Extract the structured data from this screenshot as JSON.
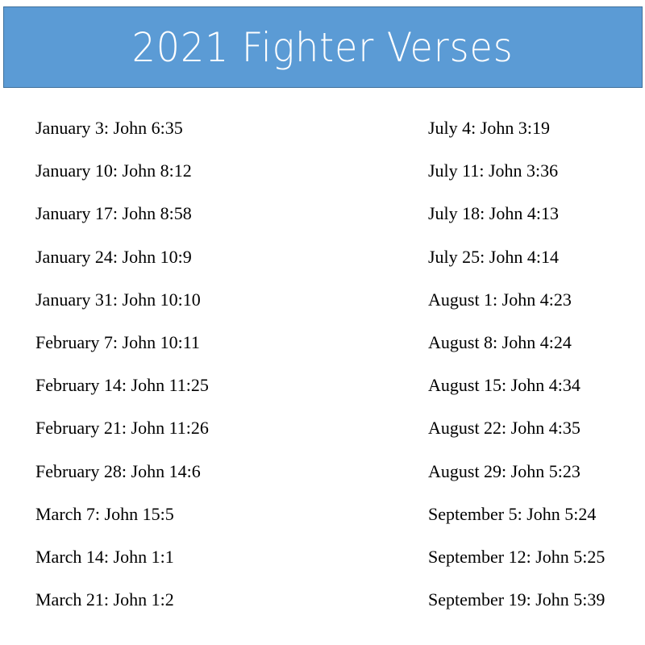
{
  "header": {
    "title": "2021 Fighter Verses",
    "background_color": "#5b9bd5"
  },
  "columns": [
    [
      "January 3: John 6:35",
      "January 10: John 8:12",
      "January 17: John 8:58",
      "January 24: John 10:9",
      "January 31: John 10:10",
      "February 7: John 10:11",
      "February 14: John 11:25",
      "February 21: John 11:26",
      "February 28: John 14:6",
      "March 7: John 15:5",
      "March 14: John 1:1",
      "March 21: John 1:2"
    ],
    [
      "July 4: John 3:19",
      "July 11: John 3:36",
      "July 18: John 4:13",
      "July 25: John 4:14",
      "August 1: John 4:23",
      "August 8: John 4:24",
      "August 15: John 4:34",
      "August 22: John 4:35",
      "August 29: John 5:23",
      "September 5: John 5:24",
      "September 12: John 5:25",
      "September 19: John 5:39"
    ]
  ]
}
